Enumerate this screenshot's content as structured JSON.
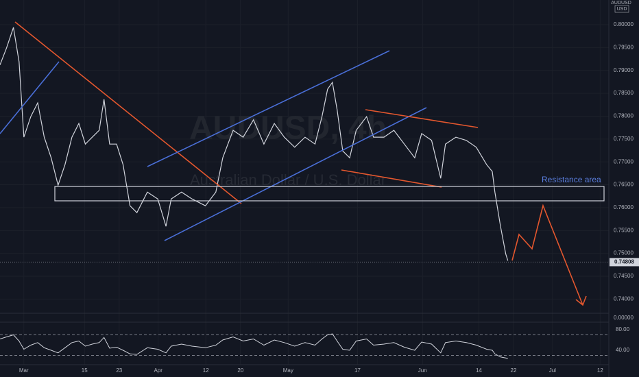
{
  "chart_data": {
    "type": "line",
    "symbol": "AUDUSD",
    "currency": "USD",
    "watermark": "AUDUSD, 4h",
    "watermark_subtitle": "Australian Dollar / U.S. Dollar",
    "annotations": [
      "Resistance area"
    ],
    "color": "#d1d4dc",
    "x": [
      -5.5,
      -4,
      -2.4,
      -1.1,
      0,
      1.6,
      3.2,
      4.7,
      6.3,
      7.9,
      9.5,
      11.1,
      12.7,
      14.2,
      15.8,
      17.4,
      18.5,
      19.8,
      21.4,
      22.9,
      24.5,
      26.1,
      28.5,
      30.9,
      32.8,
      34,
      36.4,
      38.8,
      41.9,
      44.3,
      45.9,
      48.3,
      50.6,
      53,
      55.4,
      57.8,
      60.1,
      62.5,
      64.9,
      67.2,
      68.8,
      70.1,
      71.2,
      72.3,
      73.6,
      75.2,
      76.7,
      79.1,
      80.7,
      83.1,
      85.4,
      87.8,
      90.2,
      91.8,
      94.1,
      96.2,
      97.3,
      99.7,
      102.1,
      104.4,
      106.8,
      108.1,
      108.7,
      110,
      111.2,
      111.7
    ],
    "values": [
      0.7912,
      0.7949,
      0.7994,
      0.7919,
      0.7754,
      0.7799,
      0.7829,
      0.7754,
      0.7709,
      0.7649,
      0.7694,
      0.7754,
      0.7784,
      0.7739,
      0.7754,
      0.7769,
      0.7837,
      0.7739,
      0.7739,
      0.7694,
      0.7604,
      0.7589,
      0.7634,
      0.7619,
      0.7559,
      0.7619,
      0.7634,
      0.7619,
      0.7604,
      0.7634,
      0.7709,
      0.7769,
      0.7754,
      0.7792,
      0.7739,
      0.7784,
      0.7754,
      0.7732,
      0.7754,
      0.7739,
      0.7799,
      0.7859,
      0.7874,
      0.7814,
      0.7724,
      0.7709,
      0.7769,
      0.7799,
      0.7754,
      0.7754,
      0.7769,
      0.7739,
      0.7709,
      0.7762,
      0.7747,
      0.7664,
      0.7739,
      0.7754,
      0.7747,
      0.7732,
      0.7694,
      0.7679,
      0.7634,
      0.7559,
      0.7499,
      0.7484
    ],
    "last_price": 0.74808,
    "xlim": [
      -5.5,
      135
    ],
    "xticks": [
      {
        "value": 0,
        "label": "Mar"
      },
      {
        "value": 14,
        "label": "15"
      },
      {
        "value": 22,
        "label": "23"
      },
      {
        "value": 31,
        "label": "Apr"
      },
      {
        "value": 42,
        "label": "12"
      },
      {
        "value": 50,
        "label": "20"
      },
      {
        "value": 61,
        "label": "May"
      },
      {
        "value": 77,
        "label": "17"
      },
      {
        "value": 92,
        "label": "Jun"
      },
      {
        "value": 105,
        "label": "14"
      },
      {
        "value": 113,
        "label": "22"
      },
      {
        "value": 122,
        "label": "Jul"
      },
      {
        "value": 133,
        "label": "12"
      }
    ],
    "ylim": [
      0.7372,
      0.8054
    ],
    "yticks": [
      {
        "value": 0.74,
        "label": "0.74000"
      },
      {
        "value": 0.745,
        "label": "0.74500"
      },
      {
        "value": 0.75,
        "label": "0.75000"
      },
      {
        "value": 0.755,
        "label": "0.75500"
      },
      {
        "value": 0.76,
        "label": "0.76000"
      },
      {
        "value": 0.765,
        "label": "0.76500"
      },
      {
        "value": 0.77,
        "label": "0.77000"
      },
      {
        "value": 0.775,
        "label": "0.77500"
      },
      {
        "value": 0.78,
        "label": "0.78000"
      },
      {
        "value": 0.785,
        "label": "0.78500"
      },
      {
        "value": 0.79,
        "label": "0.79000"
      },
      {
        "value": 0.795,
        "label": "0.79500"
      },
      {
        "value": 0.8,
        "label": "0.80000"
      }
    ],
    "pane_ticks": [
      {
        "value": 0,
        "label": "0.00000"
      }
    ],
    "rsi": {
      "color": "#d1d4dc",
      "values": [
        62,
        66,
        70,
        58,
        42,
        50,
        55,
        45,
        40,
        35,
        45,
        55,
        58,
        48,
        52,
        55,
        65,
        44,
        46,
        40,
        33,
        32,
        45,
        42,
        35,
        48,
        52,
        48,
        45,
        50,
        60,
        66,
        58,
        62,
        50,
        60,
        55,
        48,
        55,
        50,
        62,
        70,
        72,
        58,
        42,
        40,
        58,
        62,
        50,
        52,
        55,
        46,
        40,
        56,
        52,
        35,
        55,
        58,
        55,
        50,
        42,
        40,
        33,
        27,
        25,
        24
      ],
      "ylim": [
        8,
        94.7
      ],
      "yticks": [
        {
          "value": 80,
          "label": "80.00"
        },
        {
          "value": 40,
          "label": "40.00"
        }
      ],
      "bands": [
        70,
        30
      ]
    },
    "grid": true
  }
}
